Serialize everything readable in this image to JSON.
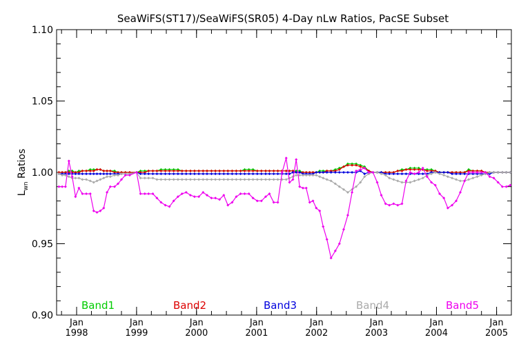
{
  "chart_data": {
    "type": "line",
    "title": "SeaWiFS(ST17)/SeaWiFS(SR05) 4-Day nLw Ratios, PacSE Subset",
    "ylabel_main": "L",
    "ylabel_sub": "wn",
    "ylabel_rest": " Ratios",
    "xlabel": "",
    "ylim": [
      0.9,
      1.1
    ],
    "yticks": [
      "1.10",
      "1.05",
      "1.00",
      "0.95",
      "0.90"
    ],
    "ytick_values": [
      1.1,
      1.05,
      1.0,
      0.95,
      0.9
    ],
    "xlim": [
      "1997-09-01",
      "2005-04-01"
    ],
    "xticks": [
      {
        "month": "Jan",
        "year": "1998",
        "date": "1998-01-01"
      },
      {
        "month": "Jan",
        "year": "1999",
        "date": "1999-01-01"
      },
      {
        "month": "Jan",
        "year": "2000",
        "date": "2000-01-01"
      },
      {
        "month": "Jan",
        "year": "2001",
        "date": "2001-01-01"
      },
      {
        "month": "Jan",
        "year": "2002",
        "date": "2002-01-01"
      },
      {
        "month": "Jan",
        "year": "2003",
        "date": "2003-01-01"
      },
      {
        "month": "Jan",
        "year": "2004",
        "date": "2004-01-01"
      },
      {
        "month": "Jan",
        "year": "2005",
        "date": "2005-01-01"
      }
    ],
    "dates": [
      "1997-09-15",
      "1997-10-05",
      "1997-10-25",
      "1997-11-15",
      "1997-12-05",
      "1997-12-25",
      "1998-01-15",
      "1998-02-05",
      "1998-03-01",
      "1998-03-25",
      "1998-04-15",
      "1998-05-05",
      "1998-05-25",
      "1998-06-15",
      "1998-07-05",
      "1998-07-25",
      "1998-08-20",
      "1998-09-10",
      "1998-10-01",
      "1998-10-25",
      "1998-11-20",
      "1999-01-01",
      "1999-01-25",
      "1999-02-20",
      "1999-03-15",
      "1999-04-10",
      "1999-05-05",
      "1999-05-30",
      "1999-06-25",
      "1999-07-20",
      "1999-08-15",
      "1999-09-10",
      "1999-10-05",
      "1999-10-30",
      "1999-11-25",
      "1999-12-20",
      "2000-01-15",
      "2000-02-10",
      "2000-03-05",
      "2000-04-01",
      "2000-04-25",
      "2000-05-20",
      "2000-06-15",
      "2000-07-10",
      "2000-08-05",
      "2000-08-30",
      "2000-09-25",
      "2000-10-20",
      "2000-11-15",
      "2000-12-10",
      "2001-01-05",
      "2001-01-30",
      "2001-02-25",
      "2001-03-20",
      "2001-04-15",
      "2001-05-10",
      "2001-06-05",
      "2001-06-30",
      "2001-07-20",
      "2001-08-10",
      "2001-08-30",
      "2001-09-20",
      "2001-10-10",
      "2001-10-30",
      "2001-11-20",
      "2001-12-10",
      "2001-12-30",
      "2002-01-20",
      "2002-02-10",
      "2002-03-05",
      "2002-03-30",
      "2002-04-25",
      "2002-05-20",
      "2002-06-15",
      "2002-07-10",
      "2002-08-05",
      "2002-08-30",
      "2002-09-25",
      "2002-10-20",
      "2002-11-15",
      "2002-12-10",
      "2003-01-05",
      "2003-01-30",
      "2003-02-25",
      "2003-03-20",
      "2003-04-15",
      "2003-05-10",
      "2003-06-05",
      "2003-06-30",
      "2003-07-25",
      "2003-08-20",
      "2003-09-15",
      "2003-10-10",
      "2003-11-05",
      "2003-12-01",
      "2003-12-25",
      "2004-01-20",
      "2004-02-15",
      "2004-03-10",
      "2004-04-05",
      "2004-04-30",
      "2004-05-25",
      "2004-06-20",
      "2004-07-15",
      "2004-08-10",
      "2004-09-05",
      "2004-10-01",
      "2004-10-25",
      "2004-11-20",
      "2004-12-15",
      "2005-01-10",
      "2005-02-05",
      "2005-03-01",
      "2005-03-25"
    ],
    "series": [
      {
        "name": "Band1",
        "color": "#00cc00",
        "marker": "diamond",
        "values": [
          1.0,
          1.0,
          1.0,
          1.001,
          1.001,
          1.0,
          1.001,
          1.001,
          1.001,
          1.002,
          1.002,
          1.002,
          1.002,
          1.001,
          1.001,
          1.001,
          1.001,
          1.0,
          1.0,
          1.0,
          1.0,
          1.0,
          1.001,
          1.001,
          1.001,
          1.001,
          1.001,
          1.002,
          1.002,
          1.002,
          1.002,
          1.002,
          1.001,
          1.001,
          1.001,
          1.001,
          1.001,
          1.001,
          1.001,
          1.001,
          1.001,
          1.001,
          1.001,
          1.001,
          1.001,
          1.001,
          1.001,
          1.002,
          1.002,
          1.002,
          1.001,
          1.001,
          1.001,
          1.001,
          1.001,
          1.001,
          1.001,
          1.001,
          1.001,
          1.001,
          1.001,
          1.001,
          1.0,
          1.0,
          1.0,
          1.0,
          1.0,
          1.001,
          1.001,
          1.001,
          1.001,
          1.002,
          1.003,
          1.004,
          1.006,
          1.006,
          1.006,
          1.005,
          1.004,
          1.001,
          1.0,
          1.0,
          1.0,
          1.0,
          1.0,
          1.0,
          1.001,
          1.002,
          1.002,
          1.003,
          1.003,
          1.003,
          1.002,
          1.002,
          1.002,
          1.001,
          1.0,
          1.0,
          1.0,
          1.0,
          1.0,
          1.0,
          1.0,
          1.002,
          1.001,
          1.001,
          1.001,
          1.0,
          1.0,
          1.0,
          1.0,
          1.0,
          1.0,
          1.0
        ]
      },
      {
        "name": "Band2",
        "color": "#dd0000",
        "marker": "diamond",
        "values": [
          1.0,
          1.0,
          1.0,
          1.0,
          1.0,
          1.0,
          1.0,
          1.001,
          1.001,
          1.001,
          1.001,
          1.002,
          1.002,
          1.001,
          1.001,
          1.001,
          1.0,
          1.0,
          1.0,
          1.0,
          1.0,
          1.0,
          1.0,
          1.0,
          1.001,
          1.001,
          1.001,
          1.001,
          1.001,
          1.001,
          1.001,
          1.001,
          1.001,
          1.001,
          1.001,
          1.001,
          1.001,
          1.001,
          1.001,
          1.001,
          1.001,
          1.001,
          1.001,
          1.001,
          1.001,
          1.001,
          1.001,
          1.001,
          1.001,
          1.001,
          1.001,
          1.001,
          1.001,
          1.001,
          1.001,
          1.001,
          1.001,
          1.001,
          1.001,
          1.001,
          1.0,
          1.0,
          1.0,
          1.0,
          1.0,
          1.0,
          1.0,
          1.0,
          1.0,
          1.001,
          1.001,
          1.001,
          1.002,
          1.004,
          1.005,
          1.005,
          1.005,
          1.004,
          1.003,
          1.001,
          1.0,
          1.0,
          1.0,
          1.0,
          1.0,
          1.0,
          1.001,
          1.001,
          1.002,
          1.002,
          1.002,
          1.002,
          1.002,
          1.001,
          1.001,
          1.001,
          1.0,
          1.0,
          1.0,
          1.0,
          1.0,
          1.0,
          1.0,
          1.001,
          1.001,
          1.001,
          1.001,
          1.0,
          1.0,
          1.0,
          1.0,
          1.0,
          1.0,
          1.0
        ]
      },
      {
        "name": "Band3",
        "color": "#0000dd",
        "marker": "diamond",
        "values": [
          0.999,
          0.999,
          0.999,
          0.999,
          0.999,
          0.999,
          0.999,
          0.999,
          0.999,
          0.999,
          0.999,
          0.999,
          0.999,
          0.999,
          0.999,
          0.999,
          0.999,
          0.999,
          0.999,
          0.999,
          0.999,
          1.0,
          0.999,
          0.999,
          0.999,
          0.999,
          0.999,
          0.999,
          0.999,
          0.999,
          0.999,
          0.999,
          0.999,
          0.999,
          0.999,
          0.999,
          0.999,
          0.999,
          0.999,
          0.999,
          0.999,
          0.999,
          0.999,
          0.999,
          0.999,
          0.999,
          0.999,
          0.999,
          0.999,
          0.999,
          0.999,
          0.999,
          0.999,
          0.999,
          0.999,
          0.999,
          0.999,
          0.999,
          0.999,
          1.0,
          1.0,
          1.0,
          0.999,
          0.999,
          0.999,
          0.999,
          1.0,
          1.0,
          1.0,
          1.0,
          1.0,
          1.0,
          1.0,
          1.0,
          1.0,
          1.0,
          1.0,
          1.001,
          0.999,
          1.0,
          1.0,
          1.0,
          1.0,
          0.999,
          0.999,
          0.999,
          0.999,
          0.999,
          0.999,
          0.999,
          0.999,
          0.999,
          0.999,
          0.999,
          1.0,
          1.0,
          1.0,
          1.0,
          1.0,
          0.999,
          0.999,
          0.999,
          0.999,
          0.999,
          0.999,
          0.999,
          0.999,
          0.999,
          0.999,
          1.0,
          1.0,
          1.0,
          1.0,
          1.0
        ]
      },
      {
        "name": "Band4",
        "color": "#aaaaaa",
        "marker": "diamond",
        "values": [
          0.999,
          0.998,
          0.998,
          0.997,
          0.996,
          0.996,
          0.996,
          0.995,
          0.995,
          0.994,
          0.993,
          0.994,
          0.995,
          0.996,
          0.997,
          0.997,
          0.998,
          0.998,
          0.999,
          0.999,
          0.999,
          1.0,
          0.996,
          0.996,
          0.996,
          0.996,
          0.995,
          0.995,
          0.995,
          0.995,
          0.995,
          0.995,
          0.995,
          0.995,
          0.995,
          0.995,
          0.995,
          0.995,
          0.995,
          0.995,
          0.995,
          0.995,
          0.995,
          0.995,
          0.995,
          0.995,
          0.995,
          0.995,
          0.995,
          0.995,
          0.995,
          0.995,
          0.995,
          0.995,
          0.995,
          0.995,
          0.995,
          0.995,
          0.996,
          0.997,
          0.998,
          0.998,
          0.998,
          0.998,
          0.998,
          0.998,
          0.998,
          0.997,
          0.996,
          0.995,
          0.994,
          0.992,
          0.99,
          0.988,
          0.986,
          0.988,
          0.99,
          0.993,
          0.997,
          0.999,
          1.0,
          1.0,
          0.999,
          0.998,
          0.996,
          0.995,
          0.994,
          0.993,
          0.993,
          0.993,
          0.994,
          0.995,
          0.996,
          0.998,
          0.999,
          1.0,
          0.999,
          0.998,
          0.997,
          0.996,
          0.995,
          0.994,
          0.994,
          0.995,
          0.996,
          0.997,
          0.998,
          0.999,
          1.0,
          1.0,
          1.0,
          1.0,
          1.0,
          1.0
        ]
      },
      {
        "name": "Band5",
        "color": "#ee00ee",
        "marker": "diamond",
        "values": [
          0.99,
          0.99,
          0.99,
          1.008,
          0.997,
          0.983,
          0.989,
          0.985,
          0.985,
          0.985,
          0.973,
          0.972,
          0.973,
          0.975,
          0.986,
          0.99,
          0.99,
          0.992,
          0.995,
          0.998,
          0.998,
          1.0,
          0.985,
          0.985,
          0.985,
          0.985,
          0.982,
          0.979,
          0.977,
          0.976,
          0.98,
          0.983,
          0.985,
          0.986,
          0.984,
          0.983,
          0.983,
          0.986,
          0.984,
          0.982,
          0.982,
          0.981,
          0.984,
          0.977,
          0.979,
          0.983,
          0.985,
          0.985,
          0.985,
          0.982,
          0.98,
          0.98,
          0.983,
          0.985,
          0.979,
          0.979,
          1.0,
          1.01,
          0.993,
          0.995,
          1.009,
          0.99,
          0.989,
          0.989,
          0.979,
          0.98,
          0.975,
          0.973,
          0.962,
          0.953,
          0.94,
          0.945,
          0.95,
          0.96,
          0.97,
          0.986,
          1.001,
          1.002,
          1.003,
          1.0,
          1.0,
          0.993,
          0.984,
          0.978,
          0.977,
          0.978,
          0.977,
          0.978,
          0.994,
          1.0,
          0.999,
          1.0,
          1.003,
          0.997,
          0.993,
          0.991,
          0.985,
          0.982,
          0.975,
          0.977,
          0.98,
          0.986,
          0.994,
          1.0,
          1.0,
          1.0,
          1.0,
          1.0,
          0.997,
          0.996,
          0.993,
          0.99,
          0.99,
          0.991
        ]
      }
    ]
  }
}
